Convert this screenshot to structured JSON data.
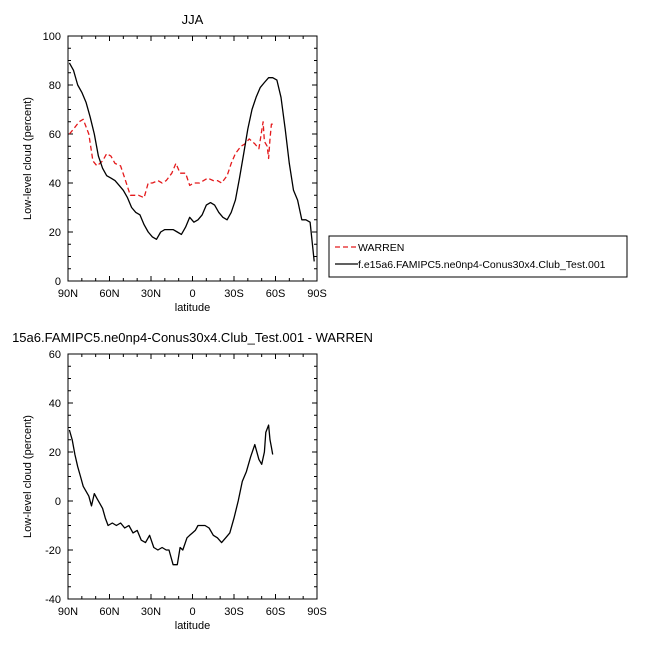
{
  "chart_data": [
    {
      "type": "line",
      "title": "JJA",
      "xlabel": "latitude",
      "ylabel": "Low-level cloud (percent)",
      "xlim": [
        90,
        -90
      ],
      "ylim": [
        0,
        100
      ],
      "x_ticks": [
        90,
        60,
        30,
        0,
        -30,
        -60,
        -90
      ],
      "x_tick_labels": [
        "90N",
        "60N",
        "30N",
        "0",
        "30S",
        "60S",
        "90S"
      ],
      "y_ticks": [
        0,
        20,
        40,
        60,
        80,
        100
      ],
      "y_tick_labels": [
        "0",
        "20",
        "40",
        "60",
        "80",
        "100"
      ],
      "legend_placement": "right-outside",
      "series": [
        {
          "name": "WARREN",
          "color": "#e41a1c",
          "dash": "dashed",
          "x": [
            89,
            86,
            82,
            79,
            75,
            72,
            69,
            65,
            62,
            59,
            56,
            52,
            49,
            45,
            42,
            39,
            35,
            32,
            29,
            25,
            22,
            19,
            15,
            12,
            9,
            5,
            2,
            -1,
            -5,
            -8,
            -11,
            -15,
            -18,
            -21,
            -25,
            -28,
            -31,
            -35,
            -38,
            -41,
            -45,
            -48,
            -51,
            -52,
            -54,
            -55,
            -56,
            -57,
            -58
          ],
          "y": [
            60,
            62,
            65,
            66,
            60,
            49,
            47,
            49,
            52,
            51,
            48,
            47,
            42,
            35,
            35,
            35,
            34,
            40,
            40,
            41,
            40,
            41,
            44,
            48,
            44,
            44,
            39,
            40,
            40,
            41,
            42,
            41,
            41,
            40,
            43,
            48,
            52,
            55,
            56,
            58,
            56,
            54,
            65,
            57,
            55,
            50,
            58,
            64,
            64
          ]
        },
        {
          "name": "f.e15a6.FAMIPC5.ne0np4-Conus30x4.Club_Test.001",
          "color": "#000000",
          "dash": "solid",
          "x": [
            89,
            86,
            83,
            80,
            77,
            74,
            71,
            68,
            65,
            62,
            59,
            56,
            53,
            50,
            47,
            44,
            41,
            38,
            35,
            32,
            29,
            26,
            23,
            20,
            17,
            14,
            11,
            8,
            5,
            2,
            -1,
            -4,
            -7,
            -10,
            -13,
            -16,
            -19,
            -22,
            -25,
            -28,
            -31,
            -34,
            -37,
            -40,
            -43,
            -46,
            -49,
            -52,
            -55,
            -58,
            -61,
            -64,
            -67,
            -70,
            -73,
            -76,
            -79,
            -82,
            -85,
            -88
          ],
          "y": [
            89,
            86,
            80,
            77,
            73,
            67,
            60,
            51,
            46,
            43,
            42,
            41,
            39,
            37,
            34,
            30,
            28,
            27,
            23,
            20,
            18,
            17,
            20,
            21,
            21,
            21,
            20,
            19,
            22,
            26,
            24,
            25,
            27,
            31,
            32,
            31,
            28,
            26,
            25,
            28,
            33,
            42,
            52,
            62,
            70,
            75,
            79,
            81,
            83,
            83,
            82,
            75,
            62,
            48,
            37,
            33,
            25,
            25,
            24,
            8
          ]
        }
      ]
    },
    {
      "type": "line",
      "title": "15a6.FAMIPC5.ne0np4-Conus30x4.Club_Test.001 - WARREN",
      "xlabel": "latitude",
      "ylabel": "Low-level cloud (percent)",
      "xlim": [
        90,
        -90
      ],
      "ylim": [
        -40,
        60
      ],
      "x_ticks": [
        90,
        60,
        30,
        0,
        -30,
        -60,
        -90
      ],
      "x_tick_labels": [
        "90N",
        "60N",
        "30N",
        "0",
        "30S",
        "60S",
        "90S"
      ],
      "y_ticks": [
        -40,
        -20,
        0,
        20,
        40,
        60
      ],
      "y_tick_labels": [
        "-40",
        "-20",
        "0",
        "20",
        "40",
        "60"
      ],
      "series": [
        {
          "color": "#000000",
          "dash": "solid",
          "x": [
            89,
            87,
            85,
            83,
            81,
            79,
            77,
            75,
            73,
            71,
            69,
            67,
            65,
            63,
            61,
            58,
            55,
            52,
            49,
            46,
            43,
            40,
            37,
            34,
            31,
            28,
            25,
            22,
            19,
            17,
            14,
            11,
            9,
            7,
            4,
            2,
            0,
            -2,
            -4,
            -6,
            -9,
            -12,
            -15,
            -18,
            -21,
            -24,
            -27,
            -30,
            -33,
            -36,
            -39,
            -42,
            -45,
            -48,
            -50,
            -52,
            -53,
            -55,
            -56,
            -57,
            -58
          ],
          "y": [
            29,
            25,
            19,
            14,
            10,
            6,
            4,
            2,
            -2,
            3,
            1,
            -1,
            -3,
            -7,
            -10,
            -9,
            -10,
            -9,
            -11,
            -10,
            -13,
            -12,
            -16,
            -17,
            -14,
            -19,
            -20,
            -19,
            -20,
            -20,
            -26,
            -26,
            -19,
            -20,
            -15,
            -14,
            -13,
            -12,
            -10,
            -10,
            -10,
            -11,
            -14,
            -15,
            -17,
            -15,
            -13,
            -7,
            0,
            8,
            12,
            18,
            23,
            17,
            15,
            20,
            28,
            31,
            25,
            22,
            19
          ]
        }
      ]
    }
  ]
}
